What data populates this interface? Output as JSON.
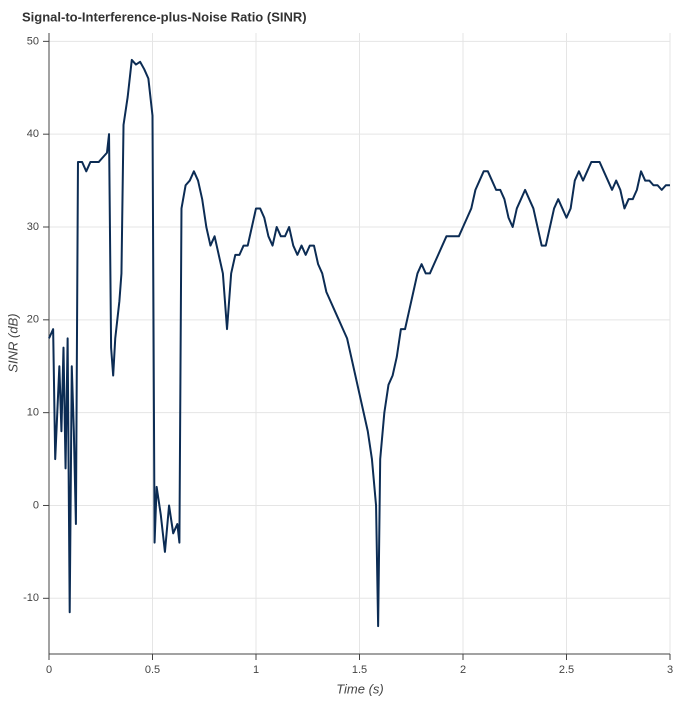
{
  "chart_data": {
    "type": "line",
    "title": "Signal-to-Interference-plus-Noise Ratio (SINR)",
    "x_label": "Time (s)",
    "y_label": "SINR (dB)",
    "xlim": [
      0,
      3
    ],
    "ylim": [
      -16,
      50.9
    ],
    "xticks": [
      0,
      0.5,
      1,
      1.5,
      2,
      2.5,
      3
    ],
    "yticks": [
      -10,
      0,
      10,
      20,
      30,
      40,
      50
    ],
    "grid": true,
    "series": [
      {
        "name": "SINR",
        "color": "#0c2c54",
        "x": [
          0,
          0.02,
          0.03,
          0.05,
          0.06,
          0.07,
          0.08,
          0.09,
          0.1,
          0.11,
          0.12,
          0.13,
          0.14,
          0.16,
          0.18,
          0.2,
          0.22,
          0.24,
          0.26,
          0.28,
          0.29,
          0.3,
          0.31,
          0.32,
          0.34,
          0.35,
          0.36,
          0.38,
          0.4,
          0.42,
          0.44,
          0.46,
          0.48,
          0.5,
          0.51,
          0.52,
          0.54,
          0.56,
          0.58,
          0.6,
          0.62,
          0.63,
          0.64,
          0.66,
          0.68,
          0.7,
          0.72,
          0.74,
          0.76,
          0.78,
          0.8,
          0.82,
          0.84,
          0.86,
          0.88,
          0.9,
          0.92,
          0.94,
          0.96,
          0.98,
          1,
          1.02,
          1.04,
          1.06,
          1.08,
          1.1,
          1.12,
          1.14,
          1.16,
          1.18,
          1.2,
          1.22,
          1.24,
          1.26,
          1.28,
          1.3,
          1.32,
          1.34,
          1.36,
          1.38,
          1.4,
          1.42,
          1.44,
          1.46,
          1.48,
          1.5,
          1.52,
          1.54,
          1.56,
          1.58,
          1.59,
          1.6,
          1.62,
          1.64,
          1.66,
          1.68,
          1.7,
          1.72,
          1.74,
          1.76,
          1.78,
          1.8,
          1.82,
          1.84,
          1.86,
          1.88,
          1.9,
          1.92,
          1.94,
          1.96,
          1.98,
          2,
          2.02,
          2.04,
          2.06,
          2.08,
          2.1,
          2.12,
          2.14,
          2.16,
          2.18,
          2.2,
          2.22,
          2.24,
          2.26,
          2.28,
          2.3,
          2.32,
          2.34,
          2.36,
          2.38,
          2.4,
          2.42,
          2.44,
          2.46,
          2.48,
          2.5,
          2.52,
          2.54,
          2.56,
          2.58,
          2.6,
          2.62,
          2.64,
          2.66,
          2.68,
          2.7,
          2.72,
          2.74,
          2.76,
          2.78,
          2.8,
          2.82,
          2.84,
          2.86,
          2.88,
          2.9,
          2.92,
          2.94,
          2.96,
          2.98,
          3
        ],
        "values": [
          18,
          19,
          5,
          15,
          8,
          17,
          4,
          18,
          -11.5,
          15,
          8,
          -2,
          37,
          37,
          36,
          37,
          37,
          37,
          37.5,
          38,
          40,
          17,
          14,
          18,
          22,
          25,
          41,
          44,
          48,
          47.5,
          47.8,
          47,
          46,
          42,
          -4,
          2,
          -1,
          -5,
          0,
          -3,
          -2,
          -4,
          32,
          34.5,
          35,
          36,
          35,
          33,
          30,
          28,
          29,
          27,
          25,
          19,
          25,
          27,
          27,
          28,
          28,
          30,
          32,
          32,
          31,
          29,
          28,
          30,
          29,
          29,
          30,
          28,
          27,
          28,
          27,
          28,
          28,
          26,
          25,
          23,
          22,
          21,
          20,
          19,
          18,
          16,
          14,
          12,
          10,
          8,
          5,
          0,
          -13,
          5,
          10,
          13,
          14,
          16,
          19,
          19,
          21,
          23,
          25,
          26,
          25,
          25,
          26,
          27,
          28,
          29,
          29,
          29,
          29,
          30,
          31,
          32,
          34,
          35,
          36,
          36,
          35,
          34,
          34,
          33,
          31,
          30,
          32,
          33,
          34,
          33,
          32,
          30,
          28,
          28,
          30,
          32,
          33,
          32,
          31,
          32,
          35,
          36,
          35,
          36,
          37,
          37,
          37,
          36,
          35,
          34,
          35,
          34,
          32,
          33,
          33,
          34,
          36,
          35,
          35,
          34.5,
          34.5,
          34,
          34.5,
          34.5
        ]
      }
    ]
  }
}
